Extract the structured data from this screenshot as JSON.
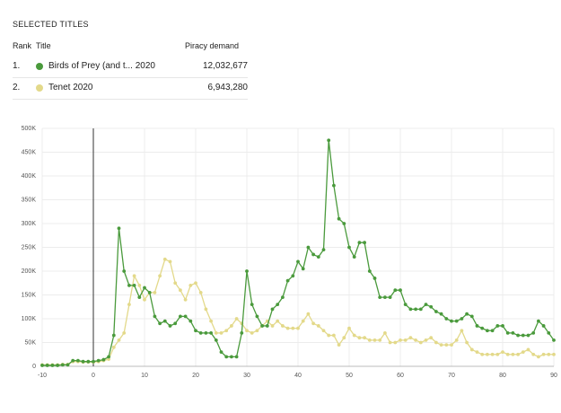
{
  "table": {
    "title": "SELECTED TITLES",
    "columns": [
      "Rank",
      "Title",
      "Piracy demand"
    ],
    "rows": [
      [
        "1.",
        "Birds of Prey (and t... 2020",
        "12,032,677"
      ],
      [
        "2.",
        "Tenet 2020",
        "6,943,280"
      ]
    ]
  },
  "chart_data": {
    "type": "line",
    "x": [
      -10,
      -9,
      -8,
      -7,
      -6,
      -5,
      -4,
      -3,
      -2,
      -1,
      0,
      1,
      2,
      3,
      4,
      5,
      6,
      7,
      8,
      9,
      10,
      11,
      12,
      13,
      14,
      15,
      16,
      17,
      18,
      19,
      20,
      21,
      22,
      23,
      24,
      25,
      26,
      27,
      28,
      29,
      30,
      31,
      32,
      33,
      34,
      35,
      36,
      37,
      38,
      39,
      40,
      41,
      42,
      43,
      44,
      45,
      46,
      47,
      48,
      49,
      50,
      51,
      52,
      53,
      54,
      55,
      56,
      57,
      58,
      59,
      60,
      61,
      62,
      63,
      64,
      65,
      66,
      67,
      68,
      69,
      70,
      71,
      72,
      73,
      74,
      75,
      76,
      77,
      78,
      79,
      80,
      81,
      82,
      83,
      84,
      85,
      86,
      87,
      88,
      89,
      90
    ],
    "series": [
      {
        "name": "Birds of Prey (and t... 2020",
        "color": "#4a9a3c",
        "values": [
          2000,
          2000,
          2000,
          2000,
          3000,
          3000,
          12000,
          12000,
          10000,
          10000,
          10000,
          12000,
          14000,
          20000,
          65000,
          290000,
          200000,
          170000,
          170000,
          145000,
          165000,
          155000,
          105000,
          90000,
          95000,
          85000,
          90000,
          105000,
          105000,
          95000,
          75000,
          70000,
          70000,
          70000,
          55000,
          30000,
          20000,
          20000,
          20000,
          70000,
          200000,
          130000,
          105000,
          85000,
          85000,
          120000,
          130000,
          145000,
          180000,
          190000,
          220000,
          205000,
          250000,
          235000,
          230000,
          245000,
          475000,
          380000,
          310000,
          300000,
          250000,
          230000,
          260000,
          260000,
          200000,
          185000,
          145000,
          145000,
          145000,
          160000,
          160000,
          130000,
          120000,
          120000,
          120000,
          130000,
          125000,
          115000,
          110000,
          100000,
          95000,
          95000,
          100000,
          110000,
          105000,
          85000,
          80000,
          75000,
          75000,
          85000,
          85000,
          70000,
          70000,
          65000,
          65000,
          65000,
          70000,
          95000,
          85000,
          70000,
          55000
        ]
      },
      {
        "name": "Tenet 2020",
        "color": "#e3d98a",
        "values": [
          3000,
          3000,
          3000,
          3000,
          4000,
          4000,
          10000,
          10000,
          9000,
          9000,
          9000,
          10000,
          12000,
          15000,
          40000,
          55000,
          70000,
          130000,
          190000,
          170000,
          140000,
          155000,
          155000,
          190000,
          225000,
          220000,
          175000,
          160000,
          140000,
          170000,
          175000,
          155000,
          120000,
          95000,
          70000,
          70000,
          75000,
          85000,
          100000,
          90000,
          75000,
          70000,
          75000,
          85000,
          95000,
          85000,
          95000,
          85000,
          80000,
          80000,
          80000,
          95000,
          110000,
          90000,
          85000,
          75000,
          65000,
          65000,
          45000,
          60000,
          80000,
          65000,
          60000,
          60000,
          55000,
          55000,
          55000,
          70000,
          50000,
          50000,
          55000,
          55000,
          60000,
          55000,
          50000,
          55000,
          60000,
          50000,
          45000,
          45000,
          45000,
          55000,
          75000,
          50000,
          35000,
          30000,
          25000,
          25000,
          25000,
          25000,
          30000,
          25000,
          25000,
          25000,
          30000,
          35000,
          25000,
          20000,
          25000,
          25000,
          25000
        ]
      }
    ],
    "xlim": [
      -10,
      90
    ],
    "xticks": [
      -10,
      0,
      10,
      20,
      30,
      40,
      50,
      60,
      70,
      80,
      90
    ],
    "ylim": [
      0,
      500000
    ],
    "yticks": [
      {
        "value": 0,
        "label": "0"
      },
      {
        "value": 50000,
        "label": "50K"
      },
      {
        "value": 100000,
        "label": "100K"
      },
      {
        "value": 150000,
        "label": "150K"
      },
      {
        "value": 200000,
        "label": "200K"
      },
      {
        "value": 250000,
        "label": "250K"
      },
      {
        "value": 300000,
        "label": "300K"
      },
      {
        "value": 350000,
        "label": "350K"
      },
      {
        "value": 400000,
        "label": "400K"
      },
      {
        "value": 450000,
        "label": "450K"
      },
      {
        "value": 500000,
        "label": "500K"
      }
    ],
    "marker_x": 0,
    "grid": true
  }
}
